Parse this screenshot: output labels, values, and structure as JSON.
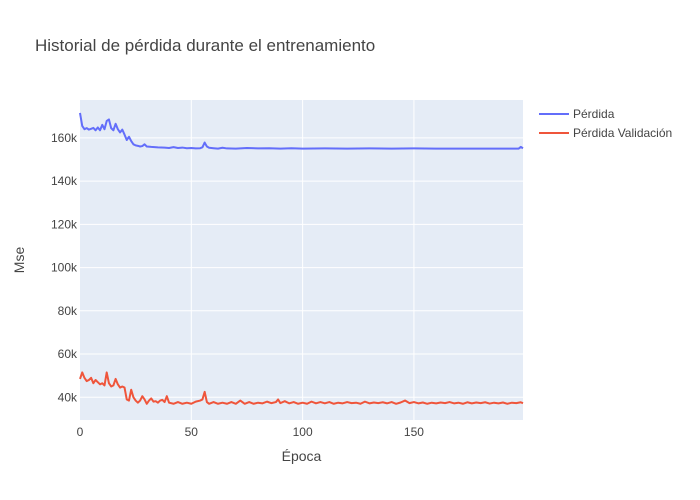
{
  "chart_data": {
    "type": "line",
    "title": "Historial de pérdida durante el entrenamiento",
    "xlabel": "Época",
    "ylabel": "Mse",
    "xlim": [
      0,
      199
    ],
    "ylim": [
      29500,
      177500
    ],
    "x_ticks": [
      0,
      50,
      100,
      150
    ],
    "x_tick_labels": [
      "0",
      "50",
      "100",
      "150"
    ],
    "y_ticks": [
      40000,
      60000,
      80000,
      100000,
      120000,
      140000,
      160000
    ],
    "y_tick_labels": [
      "40k",
      "60k",
      "80k",
      "100k",
      "120k",
      "140k",
      "160k"
    ],
    "grid": true,
    "legend_position": "top-right",
    "series": [
      {
        "name": "Pérdida",
        "color": "#636efa",
        "points": [
          [
            0,
            171500
          ],
          [
            1,
            165500
          ],
          [
            2,
            164000
          ],
          [
            3,
            164500
          ],
          [
            4,
            163800
          ],
          [
            5,
            164200
          ],
          [
            6,
            164600
          ],
          [
            7,
            163500
          ],
          [
            8,
            164800
          ],
          [
            9,
            163500
          ],
          [
            10,
            166000
          ],
          [
            11,
            164000
          ],
          [
            12,
            167800
          ],
          [
            13,
            168500
          ],
          [
            14,
            164500
          ],
          [
            15,
            163500
          ],
          [
            16,
            166500
          ],
          [
            17,
            164000
          ],
          [
            18,
            162500
          ],
          [
            19,
            163800
          ],
          [
            20,
            161500
          ],
          [
            21,
            159000
          ],
          [
            22,
            160500
          ],
          [
            23,
            158500
          ],
          [
            24,
            157000
          ],
          [
            25,
            156500
          ],
          [
            26,
            156300
          ],
          [
            27,
            156000
          ],
          [
            28,
            156200
          ],
          [
            29,
            157000
          ],
          [
            30,
            156000
          ],
          [
            32,
            155800
          ],
          [
            35,
            155600
          ],
          [
            38,
            155500
          ],
          [
            40,
            155300
          ],
          [
            42,
            155700
          ],
          [
            44,
            155300
          ],
          [
            46,
            155500
          ],
          [
            48,
            155200
          ],
          [
            50,
            155300
          ],
          [
            52,
            155100
          ],
          [
            54,
            155200
          ],
          [
            55,
            155600
          ],
          [
            56,
            157800
          ],
          [
            57,
            156000
          ],
          [
            58,
            155400
          ],
          [
            60,
            155200
          ],
          [
            62,
            155000
          ],
          [
            64,
            155400
          ],
          [
            66,
            155100
          ],
          [
            70,
            155000
          ],
          [
            75,
            155300
          ],
          [
            80,
            155100
          ],
          [
            85,
            155200
          ],
          [
            90,
            155000
          ],
          [
            95,
            155200
          ],
          [
            100,
            155000
          ],
          [
            110,
            155100
          ],
          [
            120,
            155000
          ],
          [
            130,
            155100
          ],
          [
            140,
            155000
          ],
          [
            150,
            155100
          ],
          [
            160,
            155000
          ],
          [
            170,
            155000
          ],
          [
            180,
            155000
          ],
          [
            190,
            155000
          ],
          [
            197,
            155000
          ],
          [
            198,
            155800
          ],
          [
            199,
            155200
          ]
        ]
      },
      {
        "name": "Pérdida Validación",
        "color": "#ef553b",
        "points": [
          [
            0,
            48500
          ],
          [
            1,
            51500
          ],
          [
            2,
            49000
          ],
          [
            3,
            47500
          ],
          [
            4,
            48000
          ],
          [
            5,
            49000
          ],
          [
            6,
            46500
          ],
          [
            7,
            48000
          ],
          [
            8,
            47000
          ],
          [
            9,
            46000
          ],
          [
            10,
            46500
          ],
          [
            11,
            45500
          ],
          [
            12,
            51500
          ],
          [
            13,
            46500
          ],
          [
            14,
            45000
          ],
          [
            15,
            45500
          ],
          [
            16,
            48500
          ],
          [
            17,
            46000
          ],
          [
            18,
            44500
          ],
          [
            19,
            45000
          ],
          [
            20,
            44500
          ],
          [
            21,
            39000
          ],
          [
            22,
            38500
          ],
          [
            23,
            43500
          ],
          [
            24,
            40000
          ],
          [
            25,
            38500
          ],
          [
            26,
            37500
          ],
          [
            27,
            38500
          ],
          [
            28,
            40500
          ],
          [
            29,
            39000
          ],
          [
            30,
            37000
          ],
          [
            31,
            38500
          ],
          [
            32,
            39500
          ],
          [
            33,
            38000
          ],
          [
            34,
            38200
          ],
          [
            35,
            37500
          ],
          [
            36,
            38500
          ],
          [
            37,
            38800
          ],
          [
            38,
            37800
          ],
          [
            39,
            40500
          ],
          [
            40,
            37500
          ],
          [
            42,
            37000
          ],
          [
            44,
            37800
          ],
          [
            46,
            37000
          ],
          [
            48,
            37500
          ],
          [
            50,
            37000
          ],
          [
            52,
            38000
          ],
          [
            54,
            38500
          ],
          [
            55,
            39000
          ],
          [
            56,
            42500
          ],
          [
            57,
            37800
          ],
          [
            58,
            37000
          ],
          [
            60,
            37800
          ],
          [
            62,
            37000
          ],
          [
            64,
            37500
          ],
          [
            66,
            37000
          ],
          [
            68,
            37800
          ],
          [
            70,
            37000
          ],
          [
            72,
            38500
          ],
          [
            74,
            37000
          ],
          [
            76,
            37800
          ],
          [
            78,
            37000
          ],
          [
            80,
            37500
          ],
          [
            82,
            37200
          ],
          [
            84,
            38000
          ],
          [
            86,
            37300
          ],
          [
            88,
            37800
          ],
          [
            89,
            39000
          ],
          [
            90,
            37300
          ],
          [
            92,
            38200
          ],
          [
            94,
            37200
          ],
          [
            96,
            37800
          ],
          [
            98,
            37000
          ],
          [
            100,
            37500
          ],
          [
            102,
            37000
          ],
          [
            104,
            38000
          ],
          [
            106,
            37200
          ],
          [
            108,
            37800
          ],
          [
            110,
            37200
          ],
          [
            112,
            37800
          ],
          [
            114,
            37000
          ],
          [
            116,
            37500
          ],
          [
            118,
            37200
          ],
          [
            120,
            37800
          ],
          [
            122,
            37300
          ],
          [
            124,
            37500
          ],
          [
            126,
            37000
          ],
          [
            128,
            38000
          ],
          [
            130,
            37200
          ],
          [
            132,
            37600
          ],
          [
            134,
            37300
          ],
          [
            136,
            37700
          ],
          [
            138,
            37200
          ],
          [
            140,
            37800
          ],
          [
            142,
            37000
          ],
          [
            144,
            37600
          ],
          [
            146,
            38500
          ],
          [
            148,
            37300
          ],
          [
            150,
            37800
          ],
          [
            152,
            37200
          ],
          [
            154,
            37600
          ],
          [
            156,
            37000
          ],
          [
            158,
            37500
          ],
          [
            160,
            37200
          ],
          [
            162,
            37600
          ],
          [
            164,
            37300
          ],
          [
            166,
            37800
          ],
          [
            168,
            37200
          ],
          [
            170,
            37500
          ],
          [
            172,
            37000
          ],
          [
            174,
            37700
          ],
          [
            176,
            37200
          ],
          [
            178,
            37600
          ],
          [
            180,
            37300
          ],
          [
            182,
            37700
          ],
          [
            184,
            37100
          ],
          [
            186,
            37500
          ],
          [
            188,
            37200
          ],
          [
            190,
            37600
          ],
          [
            192,
            37000
          ],
          [
            194,
            37500
          ],
          [
            196,
            37300
          ],
          [
            198,
            37700
          ],
          [
            199,
            37300
          ]
        ]
      }
    ]
  }
}
